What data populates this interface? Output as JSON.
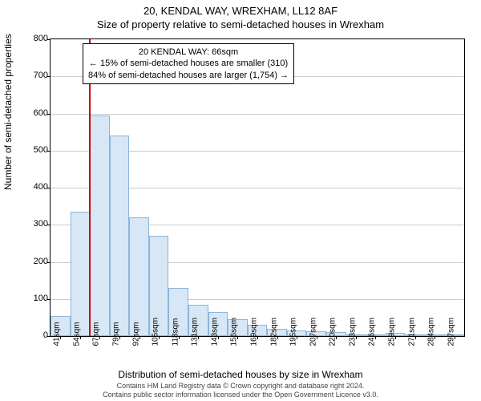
{
  "title_top": "20, KENDAL WAY, WREXHAM, LL12 8AF",
  "title_sub": "Size of property relative to semi-detached houses in Wrexham",
  "ylabel": "Number of semi-detached properties",
  "xlabel": "Distribution of semi-detached houses by size in Wrexham",
  "info_box": {
    "line1": "20 KENDAL WAY: 66sqm",
    "line2": "← 15% of semi-detached houses are smaller (310)",
    "line3": "84% of semi-detached houses are larger (1,754) →"
  },
  "chart": {
    "type": "histogram",
    "bar_fill": "#d7e7f5",
    "bar_border": "#8cb5d9",
    "marker_color": "#cc0000",
    "marker_x_index": 2,
    "background_color": "#ffffff",
    "grid_color": "#cccccc",
    "border_color": "#000000",
    "ylim": [
      0,
      800
    ],
    "ytick_step": 100,
    "yticks": [
      0,
      100,
      200,
      300,
      400,
      500,
      600,
      700,
      800
    ],
    "xtick_labels": [
      "41sqm",
      "54sqm",
      "67sqm",
      "79sqm",
      "92sqm",
      "105sqm",
      "118sqm",
      "131sqm",
      "143sqm",
      "156sqm",
      "169sqm",
      "182sqm",
      "195sqm",
      "207sqm",
      "220sqm",
      "233sqm",
      "246sqm",
      "259sqm",
      "271sqm",
      "284sqm",
      "297sqm"
    ],
    "values": [
      55,
      335,
      595,
      540,
      320,
      270,
      130,
      85,
      65,
      45,
      30,
      20,
      15,
      12,
      10,
      2,
      2,
      8,
      0,
      0,
      2
    ],
    "bar_count": 21,
    "label_fontsize": 12,
    "tick_fontsize": 11
  },
  "footer": {
    "line1": "Contains HM Land Registry data © Crown copyright and database right 2024.",
    "line2": "Contains public sector information licensed under the Open Government Licence v3.0."
  }
}
